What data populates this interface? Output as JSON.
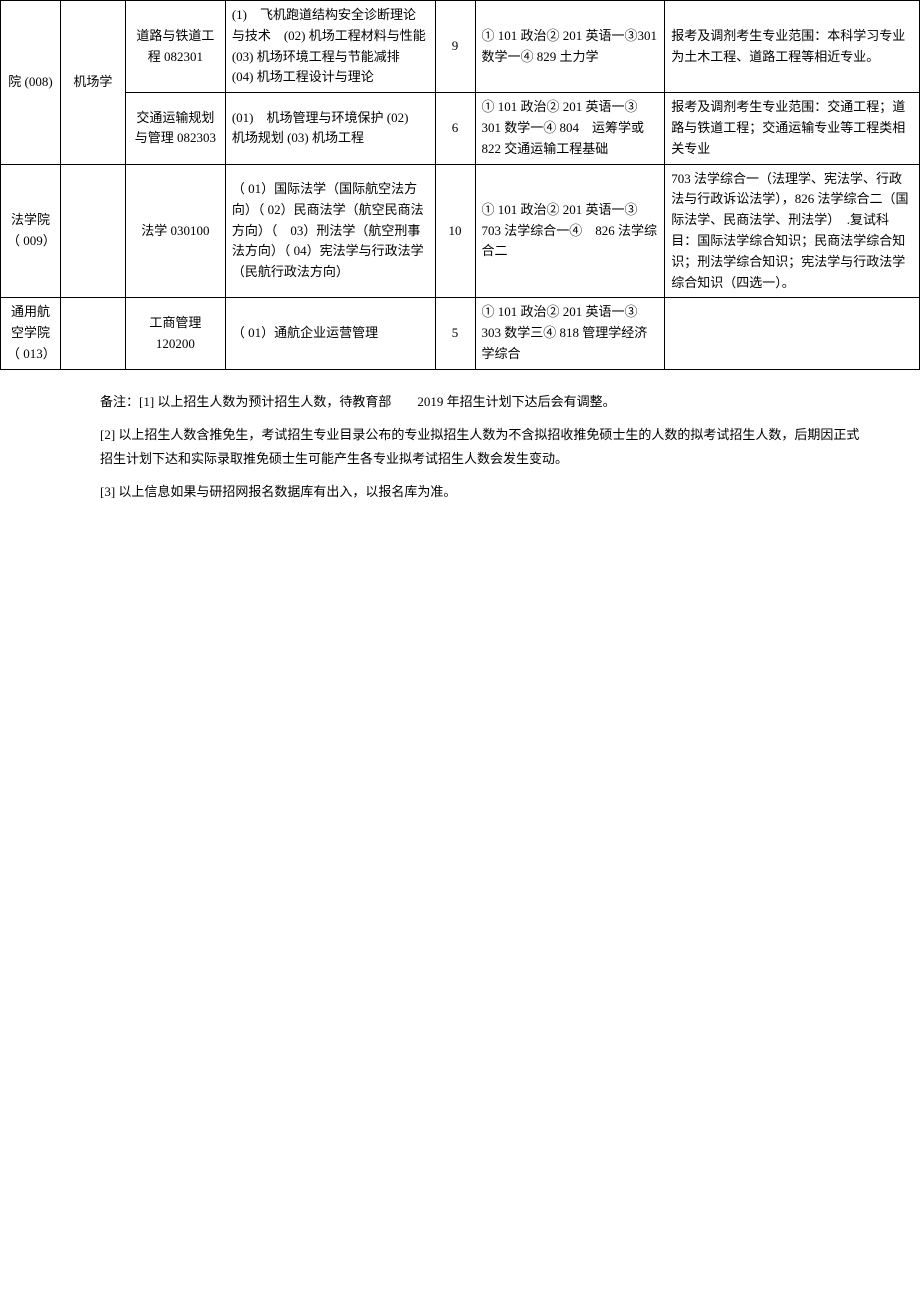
{
  "table": {
    "rows": [
      {
        "college": "院 (008)",
        "college_rowspan": 2,
        "dept": "机场学",
        "dept_rowspan": 2,
        "major": "道路与铁道工程 082301",
        "direction": "(1)　飞机跑道结构安全诊断理论与技术　(02) 机场工程材料与性能 (03) 机场环境工程与节能减排　(04) 机场工程设计与理论",
        "num": "9",
        "subjects": "① 101 政治② 201 英语一③301 数学一④ 829 土力学",
        "remarks": "报考及调剂考生专业范围：本科学习专业为土木工程、道路工程等相近专业。"
      },
      {
        "major": "交通运输规划与管理 082303",
        "direction": "(01)　机场管理与环境保护 (02)　机场规划 (03) 机场工程",
        "num": "6",
        "subjects": "① 101 政治② 201 英语一③ 301 数学一④ 804　运筹学或 822 交通运输工程基础",
        "remarks": "报考及调剂考生专业范围：交通工程；道路与铁道工程；交通运输专业等工程类相关专业"
      },
      {
        "college": "法学院（ 009）",
        "dept": "",
        "major": "法学 030100",
        "direction": "（ 01）国际法学（国际航空法方向）（ 02）民商法学（航空民商法方向）（　03）刑法学（航空刑事法方向）（ 04）宪法学与行政法学（民航行政法方向）",
        "num": "10",
        "subjects": "① 101 政治② 201 英语一③ 703 法学综合一④　826 法学综合二",
        "remarks": "703 法学综合一（法理学、宪法学、行政法与行政诉讼法学），826 法学综合二（国际法学、民商法学、刑法学）　.复试科目：国际法学综合知识；民商法学综合知识；刑法学综合知识；宪法学与行政法学综合知识（四选一）。"
      },
      {
        "college": "通用航空学院（ 013）",
        "dept": "",
        "major": "工商管理 120200",
        "direction": "（ 01）通航企业运营管理",
        "num": "5",
        "subjects": "① 101 政治② 201 英语一③ 303 数学三④ 818 管理学经济学综合",
        "remarks": ""
      }
    ]
  },
  "notes": {
    "n1": "备注：[1] 以上招生人数为预计招生人数，待教育部　　2019 年招生计划下达后会有调整。",
    "n2": "[2] 以上招生人数含推免生，考试招生专业目录公布的专业拟招生人数为不含拟招收推免硕士生的人数的拟考试招生人数，后期因正式招生计划下达和实际录取推免硕士生可能产生各专业拟考试招生人数会发生变动。",
    "n3": "[3] 以上信息如果与研招网报名数据库有出入，以报名库为准。"
  }
}
